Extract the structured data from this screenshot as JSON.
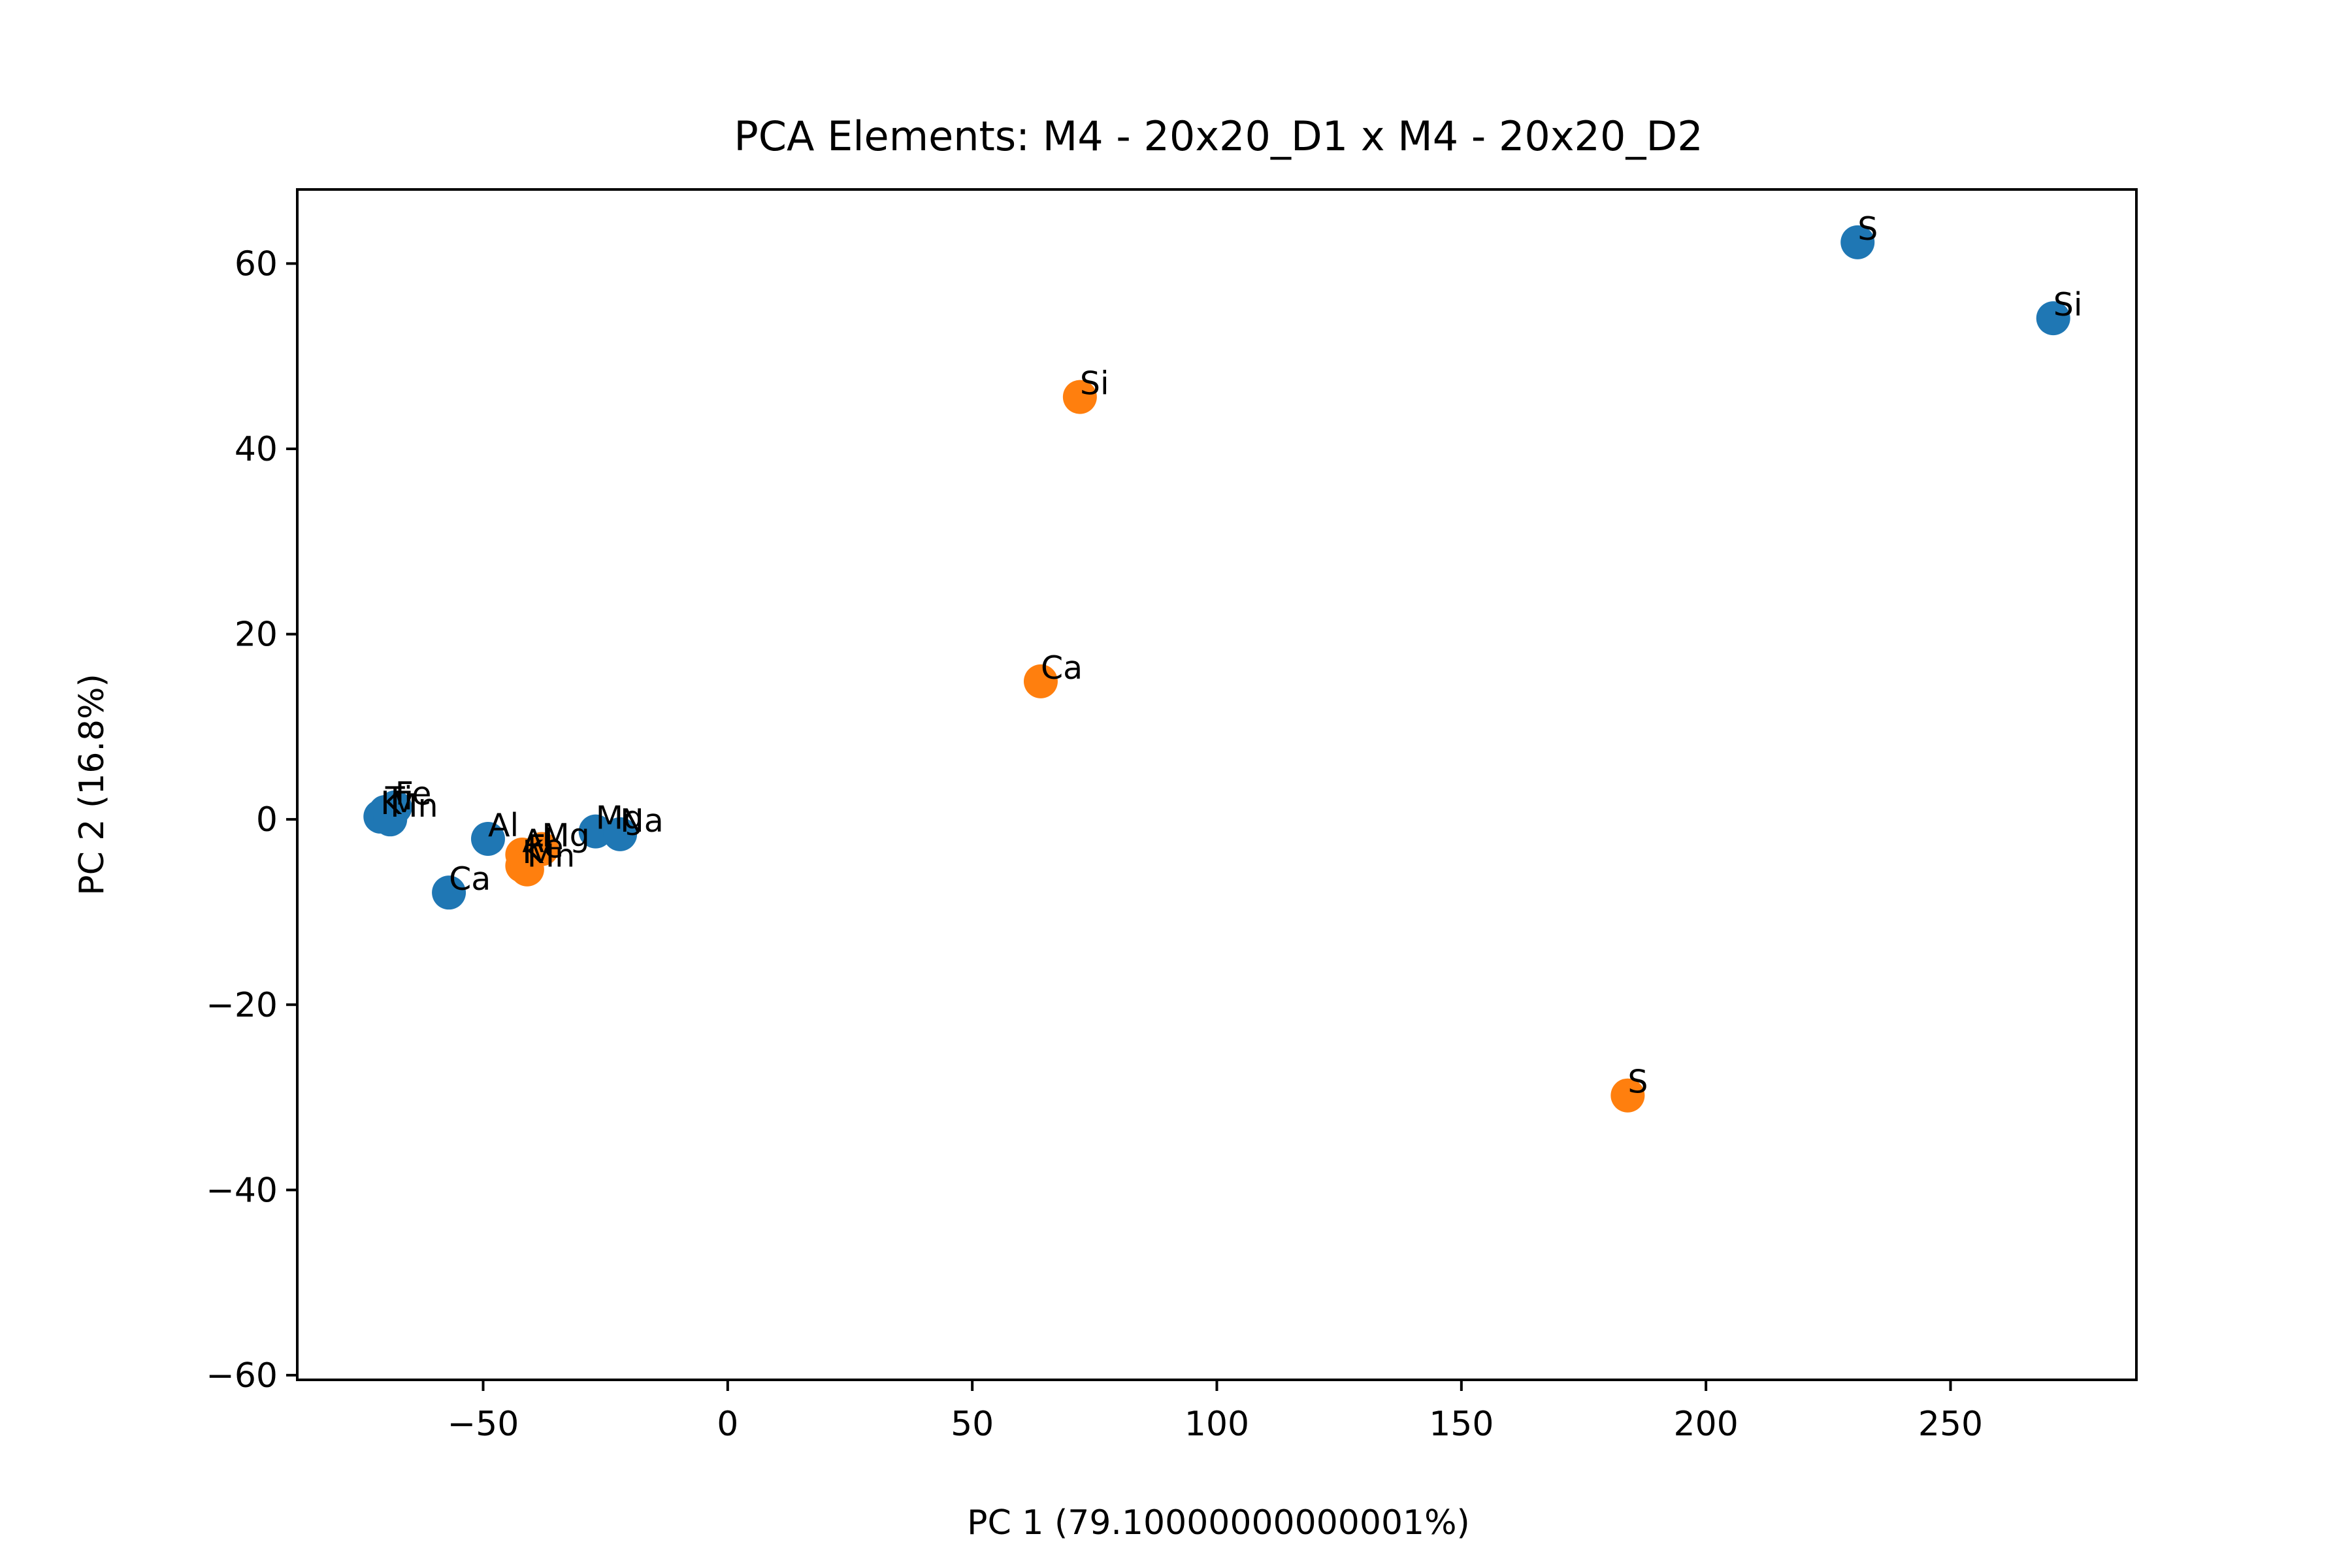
{
  "chart_data": {
    "type": "scatter",
    "title": "PCA Elements: M4 - 20x20_D1 x M4 - 20x20_D2",
    "xlabel": "PC 1 (79.10000000000001%)",
    "ylabel": "PC 2 (16.8%)",
    "xlim": [
      -88,
      288
    ],
    "ylim": [
      -60.5,
      68
    ],
    "xticks": [
      -50,
      0,
      50,
      100,
      150,
      200,
      250
    ],
    "yticks": [
      -60,
      -40,
      -20,
      0,
      20,
      40,
      60
    ],
    "xtick_labels": [
      "−50",
      "0",
      "50",
      "100",
      "150",
      "200",
      "250"
    ],
    "ytick_labels": [
      "−60",
      "−40",
      "−20",
      "0",
      "20",
      "40",
      "60"
    ],
    "grid": false,
    "legend": false,
    "colors": [
      "#1f77b4",
      "#ff7f0e"
    ],
    "series": [
      {
        "points": [
          {
            "label": "S",
            "x": 231,
            "y": 62.3
          },
          {
            "label": "Si",
            "x": 271,
            "y": 54.1
          },
          {
            "label": "Ca",
            "x": -57,
            "y": -7.9
          },
          {
            "label": "Al",
            "x": -49,
            "y": -2.1
          },
          {
            "label": "Mg",
            "x": -27,
            "y": -1.3
          },
          {
            "label": "Na",
            "x": -22,
            "y": -1.6
          },
          {
            "label": "Fe",
            "x": -68,
            "y": 1.3
          },
          {
            "label": "Ti",
            "x": -70,
            "y": 0.8
          },
          {
            "label": "K",
            "x": -71,
            "y": 0.3
          },
          {
            "label": "Mn",
            "x": -69,
            "y": 0.0
          }
        ]
      },
      {
        "points": [
          {
            "label": "Si",
            "x": 72,
            "y": 45.6
          },
          {
            "label": "Ca",
            "x": 64,
            "y": 14.9
          },
          {
            "label": "S",
            "x": 184,
            "y": -29.8
          },
          {
            "label": "Al",
            "x": -42,
            "y": -3.8
          },
          {
            "label": "Mg",
            "x": -38,
            "y": -3.2
          },
          {
            "label": "Fe",
            "x": -41,
            "y": -4.4
          },
          {
            "label": "K",
            "x": -42,
            "y": -5.0
          },
          {
            "label": "Mn",
            "x": -41,
            "y": -5.4
          }
        ]
      }
    ]
  }
}
